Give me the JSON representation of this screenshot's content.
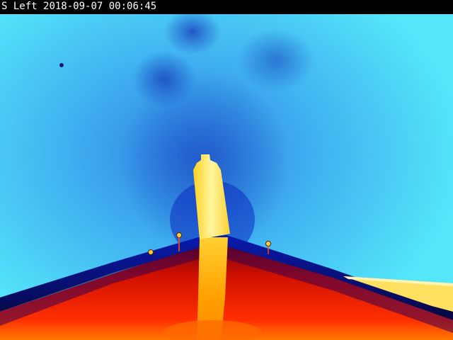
{
  "overlay": {
    "camera_label": "S Left",
    "date": "2018-09-07",
    "time": "00:06:45"
  },
  "palette": {
    "background_cyan": "#4fe8f8",
    "mid_blue": "#2a6fd8",
    "deep_blue": "#0a1aa8",
    "navy": "#050a60",
    "red": "#e01000",
    "orange": "#ff6a00",
    "yellow": "#ffe640",
    "hot_white": "#fff7a8"
  }
}
